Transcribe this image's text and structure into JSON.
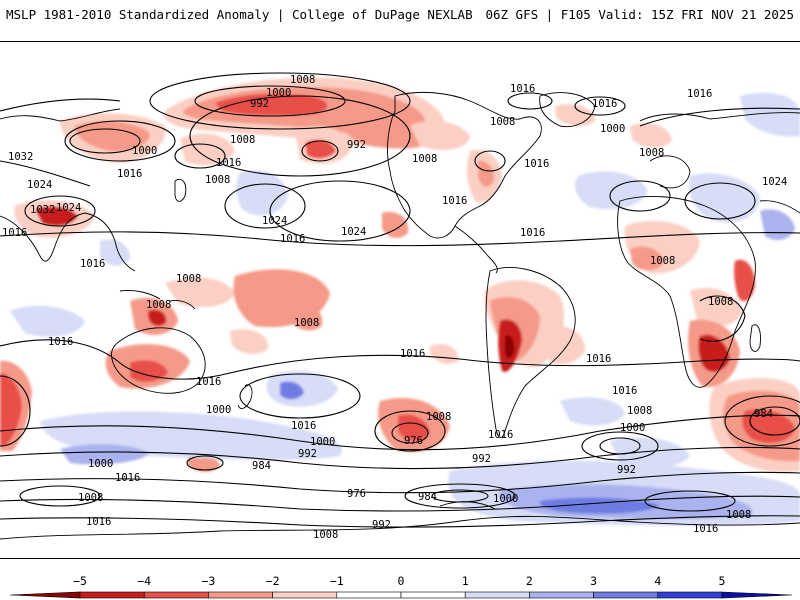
{
  "header": {
    "left_title": "MSLP 1981-2010 Standardized Anomaly | College of DuPage NEXLAB",
    "right_title": "06Z GFS | F105 Valid: 15Z FRI NOV 21 2025"
  },
  "map": {
    "projection": "global cylindrical",
    "contour_labels": [
      "1008",
      "1000",
      "992",
      "1016",
      "1016",
      "1008",
      "1000",
      "992",
      "1008",
      "1000",
      "1032",
      "1016",
      "1024",
      "1008",
      "1016",
      "1024",
      "1016",
      "1024",
      "1008",
      "1016",
      "1016",
      "1032",
      "1024",
      "1016",
      "1024",
      "1016",
      "1016",
      "1008",
      "1016",
      "1008",
      "1008",
      "1008",
      "1016",
      "1016",
      "1016",
      "1008",
      "1008",
      "1000",
      "1008",
      "1016",
      "1000",
      "992",
      "976",
      "992",
      "1016",
      "1016",
      "1008",
      "1000",
      "984",
      "992",
      "984",
      "976",
      "1000",
      "1016",
      "1000",
      "1008",
      "1016",
      "1008",
      "1008",
      "992",
      "984",
      "1016",
      "1016"
    ],
    "anomaly_colors": {
      "neg5": "#8b0000",
      "neg4": "#c81e1e",
      "neg3": "#e8504a",
      "neg2": "#f59a88",
      "neg1": "#fbcfc3",
      "zero": "#ffffff",
      "pos1": "#d7dcf7",
      "pos2": "#aab3ee",
      "pos3": "#6e7de3",
      "pos4": "#3040d6",
      "pos5": "#0a10a8"
    }
  },
  "colorbar": {
    "ticks": [
      "−5",
      "−4",
      "−3",
      "−2",
      "−1",
      "0",
      "1",
      "2",
      "3",
      "4",
      "5"
    ],
    "stops": [
      "#8b0000",
      "#c81e1e",
      "#e8504a",
      "#f59a88",
      "#fbcfc3",
      "#ffffff",
      "#ffffff",
      "#d7dcf7",
      "#aab3ee",
      "#6e7de3",
      "#3040d6",
      "#0a10a8"
    ]
  }
}
